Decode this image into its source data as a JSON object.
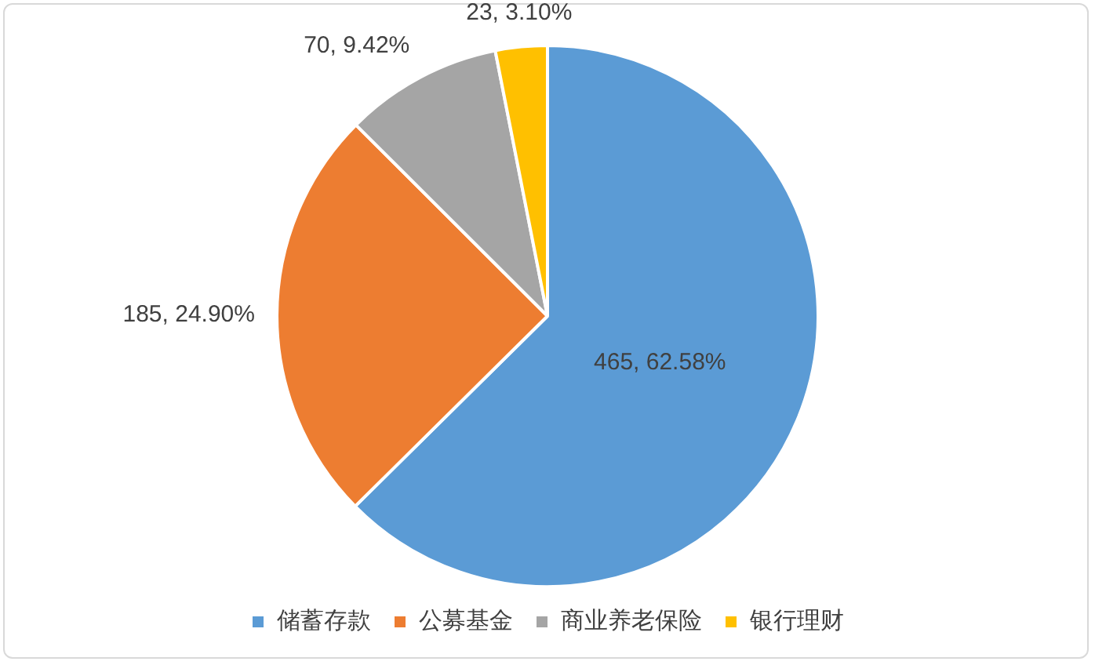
{
  "chart_data": {
    "type": "pie",
    "categories": [
      "储蓄存款",
      "公募基金",
      "商业养老保险",
      "银行理财"
    ],
    "values": [
      465,
      185,
      70,
      23
    ],
    "colors": [
      "#5b9bd5",
      "#ed7d31",
      "#a5a5a5",
      "#ffc000"
    ],
    "value_labels": [
      "465, 62.58%",
      "185, 24.90%",
      "70, 9.42%",
      "23, 3.10%"
    ],
    "legend": "bottom"
  }
}
